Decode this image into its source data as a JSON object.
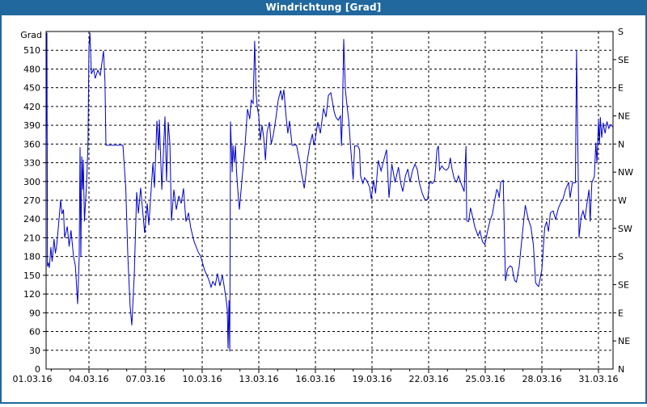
{
  "window": {
    "title": "Windrichtung [Grad]"
  },
  "colors": {
    "frame": "#20689d",
    "titlebar_text": "#ffffff",
    "plot_border": "#000000",
    "gridline": "#000000",
    "line": "#0000cc",
    "background": "#ffffff"
  },
  "chart_data": {
    "type": "line",
    "title": "Windrichtung [Grad]",
    "xlabel": "",
    "ylabel_left": "Grad",
    "x_unit": "days since 01.03.16",
    "xlim": [
      0.73,
      30.77
    ],
    "ylim": [
      0,
      540
    ],
    "grid": "dashed, x every 3 days, y every 30 Grad",
    "legend_position": "none",
    "x_tick_labels": [
      {
        "day": 0,
        "text": "01.03.16"
      },
      {
        "day": 3,
        "text": "04.03.16"
      },
      {
        "day": 6,
        "text": "07.03.16"
      },
      {
        "day": 9,
        "text": "10.03.16"
      },
      {
        "day": 12,
        "text": "13.03.16"
      },
      {
        "day": 15,
        "text": "16.03.16"
      },
      {
        "day": 18,
        "text": "19.03.16"
      },
      {
        "day": 21,
        "text": "22.03.16"
      },
      {
        "day": 24,
        "text": "25.03.16"
      },
      {
        "day": 27,
        "text": "28.03.16"
      },
      {
        "day": 30,
        "text": "31.03.16"
      }
    ],
    "y_left_axis": {
      "top_label": "Grad",
      "tick_step": 30,
      "tick_values": [
        0,
        30,
        60,
        90,
        120,
        150,
        180,
        210,
        240,
        270,
        300,
        330,
        360,
        390,
        420,
        450,
        480,
        510
      ]
    },
    "y_right_axis": {
      "tick_step": 45,
      "labels_bottom_to_top": [
        "N",
        "NE",
        "E",
        "SE",
        "S",
        "SW",
        "W",
        "NW",
        "N",
        "NE",
        "E",
        "SE",
        "S"
      ]
    },
    "series": [
      {
        "name": "Windrichtung",
        "color": "#0000cc",
        "points": [
          [
            0.73,
            350
          ],
          [
            0.77,
            538
          ],
          [
            0.8,
            164
          ],
          [
            0.85,
            170
          ],
          [
            0.9,
            162
          ],
          [
            0.98,
            195
          ],
          [
            1.05,
            172
          ],
          [
            1.15,
            208
          ],
          [
            1.22,
            185
          ],
          [
            1.3,
            200
          ],
          [
            1.4,
            235
          ],
          [
            1.5,
            271
          ],
          [
            1.57,
            248
          ],
          [
            1.65,
            255
          ],
          [
            1.71,
            210
          ],
          [
            1.85,
            228
          ],
          [
            1.95,
            196
          ],
          [
            2.05,
            222
          ],
          [
            2.18,
            180
          ],
          [
            2.28,
            165
          ],
          [
            2.4,
            104
          ],
          [
            2.48,
            177
          ],
          [
            2.53,
            355
          ],
          [
            2.57,
            180
          ],
          [
            2.62,
            340
          ],
          [
            2.66,
            287
          ],
          [
            2.7,
            335
          ],
          [
            2.76,
            236
          ],
          [
            2.88,
            300
          ],
          [
            2.95,
            360
          ],
          [
            3.0,
            515
          ],
          [
            3.05,
            538
          ],
          [
            3.13,
            472
          ],
          [
            3.25,
            480
          ],
          [
            3.33,
            465
          ],
          [
            3.47,
            478
          ],
          [
            3.6,
            470
          ],
          [
            3.77,
            509
          ],
          [
            3.85,
            460
          ],
          [
            3.9,
            358
          ],
          [
            4.8,
            358
          ],
          [
            4.95,
            290
          ],
          [
            5.06,
            180
          ],
          [
            5.18,
            100
          ],
          [
            5.27,
            70
          ],
          [
            5.4,
            150
          ],
          [
            5.53,
            283
          ],
          [
            5.62,
            249
          ],
          [
            5.74,
            290
          ],
          [
            5.95,
            218
          ],
          [
            6.09,
            265
          ],
          [
            6.17,
            230
          ],
          [
            6.39,
            330
          ],
          [
            6.47,
            290
          ],
          [
            6.6,
            397
          ],
          [
            6.69,
            350
          ],
          [
            6.73,
            399
          ],
          [
            6.86,
            287
          ],
          [
            7.03,
            404
          ],
          [
            7.11,
            300
          ],
          [
            7.2,
            395
          ],
          [
            7.29,
            360
          ],
          [
            7.37,
            237
          ],
          [
            7.5,
            287
          ],
          [
            7.63,
            255
          ],
          [
            7.76,
            277
          ],
          [
            7.89,
            265
          ],
          [
            8.01,
            289
          ],
          [
            8.14,
            236
          ],
          [
            8.27,
            250
          ],
          [
            8.4,
            225
          ],
          [
            8.57,
            204
          ],
          [
            8.79,
            187
          ],
          [
            8.91,
            181
          ],
          [
            9.13,
            158
          ],
          [
            9.34,
            144
          ],
          [
            9.47,
            131
          ],
          [
            9.56,
            140
          ],
          [
            9.69,
            134
          ],
          [
            9.81,
            153
          ],
          [
            9.94,
            133
          ],
          [
            10.07,
            150
          ],
          [
            10.24,
            118
          ],
          [
            10.33,
            96
          ],
          [
            10.37,
            33
          ],
          [
            10.42,
            110
          ],
          [
            10.46,
            28
          ],
          [
            10.5,
            396
          ],
          [
            10.55,
            350
          ],
          [
            10.59,
            315
          ],
          [
            10.63,
            358
          ],
          [
            10.7,
            330
          ],
          [
            10.76,
            358
          ],
          [
            10.82,
            315
          ],
          [
            10.9,
            282
          ],
          [
            10.97,
            255
          ],
          [
            11.1,
            300
          ],
          [
            11.27,
            358
          ],
          [
            11.4,
            416
          ],
          [
            11.52,
            400
          ],
          [
            11.6,
            430
          ],
          [
            11.7,
            425
          ],
          [
            11.78,
            525
          ],
          [
            11.86,
            440
          ],
          [
            11.92,
            420
          ],
          [
            12.0,
            404
          ],
          [
            12.08,
            366
          ],
          [
            12.17,
            390
          ],
          [
            12.26,
            370
          ],
          [
            12.35,
            334
          ],
          [
            12.44,
            380
          ],
          [
            12.56,
            395
          ],
          [
            12.66,
            360
          ],
          [
            12.77,
            375
          ],
          [
            12.9,
            400
          ],
          [
            13.03,
            430
          ],
          [
            13.16,
            446
          ],
          [
            13.24,
            430
          ],
          [
            13.33,
            447
          ],
          [
            13.45,
            403
          ],
          [
            13.54,
            377
          ],
          [
            13.63,
            397
          ],
          [
            13.76,
            358
          ],
          [
            14.0,
            358
          ],
          [
            14.15,
            334
          ],
          [
            14.27,
            312
          ],
          [
            14.41,
            289
          ],
          [
            14.5,
            312
          ],
          [
            14.57,
            334
          ],
          [
            14.7,
            358
          ],
          [
            14.84,
            376
          ],
          [
            14.92,
            358
          ],
          [
            15.0,
            370
          ],
          [
            15.13,
            395
          ],
          [
            15.26,
            377
          ],
          [
            15.43,
            417
          ],
          [
            15.56,
            403
          ],
          [
            15.69,
            438
          ],
          [
            15.82,
            442
          ],
          [
            15.99,
            412
          ],
          [
            16.08,
            403
          ],
          [
            16.21,
            398
          ],
          [
            16.33,
            405
          ],
          [
            16.38,
            357
          ],
          [
            16.43,
            405
          ],
          [
            16.5,
            528
          ],
          [
            16.59,
            446
          ],
          [
            16.68,
            420
          ],
          [
            16.77,
            397
          ],
          [
            16.86,
            357
          ],
          [
            17.0,
            303
          ],
          [
            17.08,
            357
          ],
          [
            17.25,
            357
          ],
          [
            17.34,
            351
          ],
          [
            17.39,
            309
          ],
          [
            17.52,
            297
          ],
          [
            17.6,
            306
          ],
          [
            17.73,
            301
          ],
          [
            17.87,
            291
          ],
          [
            17.96,
            272
          ],
          [
            18.08,
            302
          ],
          [
            18.19,
            281
          ],
          [
            18.33,
            334
          ],
          [
            18.48,
            317
          ],
          [
            18.62,
            334
          ],
          [
            18.77,
            351
          ],
          [
            18.9,
            274
          ],
          [
            19.05,
            328
          ],
          [
            19.22,
            299
          ],
          [
            19.4,
            323
          ],
          [
            19.52,
            297
          ],
          [
            19.63,
            284
          ],
          [
            19.77,
            309
          ],
          [
            19.9,
            320
          ],
          [
            20.01,
            299
          ],
          [
            20.15,
            318
          ],
          [
            20.28,
            328
          ],
          [
            20.41,
            318
          ],
          [
            20.5,
            299
          ],
          [
            20.66,
            281
          ],
          [
            20.8,
            271
          ],
          [
            20.95,
            271
          ],
          [
            21.05,
            299
          ],
          [
            21.2,
            297
          ],
          [
            21.32,
            302
          ],
          [
            21.44,
            351
          ],
          [
            21.52,
            357
          ],
          [
            21.58,
            318
          ],
          [
            21.7,
            325
          ],
          [
            21.82,
            320
          ],
          [
            21.94,
            318
          ],
          [
            22.06,
            322
          ],
          [
            22.15,
            338
          ],
          [
            22.24,
            320
          ],
          [
            22.35,
            305
          ],
          [
            22.48,
            299
          ],
          [
            22.58,
            309
          ],
          [
            22.72,
            297
          ],
          [
            22.88,
            284
          ],
          [
            22.98,
            357
          ],
          [
            23.02,
            237
          ],
          [
            23.12,
            236
          ],
          [
            23.22,
            258
          ],
          [
            23.32,
            245
          ],
          [
            23.45,
            227
          ],
          [
            23.62,
            213
          ],
          [
            23.72,
            221
          ],
          [
            23.85,
            204
          ],
          [
            23.98,
            199
          ],
          [
            24.1,
            217
          ],
          [
            24.25,
            237
          ],
          [
            24.38,
            248
          ],
          [
            24.51,
            272
          ],
          [
            24.61,
            287
          ],
          [
            24.68,
            283
          ],
          [
            24.74,
            274
          ],
          [
            24.82,
            299
          ],
          [
            24.95,
            302
          ],
          [
            25.07,
            141
          ],
          [
            25.18,
            160
          ],
          [
            25.32,
            165
          ],
          [
            25.42,
            163
          ],
          [
            25.55,
            142
          ],
          [
            25.65,
            139
          ],
          [
            25.8,
            165
          ],
          [
            25.98,
            220
          ],
          [
            26.12,
            262
          ],
          [
            26.28,
            240
          ],
          [
            26.42,
            227
          ],
          [
            26.55,
            199
          ],
          [
            26.67,
            138
          ],
          [
            26.76,
            134
          ],
          [
            26.83,
            132
          ],
          [
            27.0,
            159
          ],
          [
            27.15,
            226
          ],
          [
            27.25,
            236
          ],
          [
            27.35,
            220
          ],
          [
            27.45,
            250
          ],
          [
            27.6,
            253
          ],
          [
            27.73,
            239
          ],
          [
            27.87,
            257
          ],
          [
            28.0,
            266
          ],
          [
            28.12,
            272
          ],
          [
            28.25,
            287
          ],
          [
            28.42,
            299
          ],
          [
            28.5,
            274
          ],
          [
            28.62,
            298
          ],
          [
            28.78,
            298
          ],
          [
            28.84,
            510
          ],
          [
            28.97,
            210
          ],
          [
            29.08,
            243
          ],
          [
            29.18,
            253
          ],
          [
            29.28,
            240
          ],
          [
            29.4,
            267
          ],
          [
            29.5,
            287
          ],
          [
            29.56,
            236
          ],
          [
            29.65,
            298
          ],
          [
            29.78,
            308
          ],
          [
            29.86,
            362
          ],
          [
            29.92,
            330
          ],
          [
            30.0,
            398
          ],
          [
            30.05,
            360
          ],
          [
            30.1,
            403
          ],
          [
            30.17,
            370
          ],
          [
            30.25,
            394
          ],
          [
            30.35,
            377
          ],
          [
            30.45,
            396
          ],
          [
            30.55,
            385
          ],
          [
            30.65,
            391
          ],
          [
            30.77,
            387
          ]
        ]
      }
    ]
  }
}
